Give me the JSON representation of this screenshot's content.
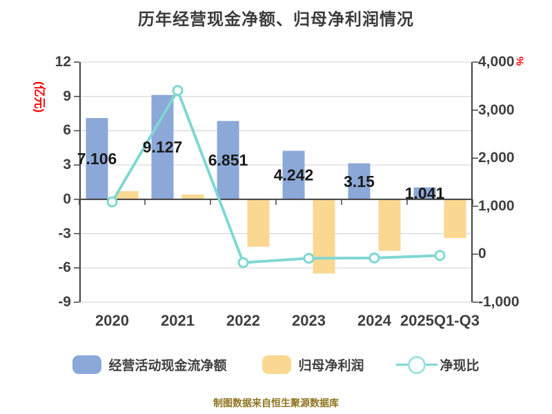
{
  "chart_data": {
    "type": "combo-bar-line",
    "title": "历年经营现金净额、归母净利润情况",
    "categories": [
      "2020",
      "2021",
      "2022",
      "2023",
      "2024",
      "2025Q1-Q3"
    ],
    "series": [
      {
        "name": "经营活动现金流净额",
        "type": "bar",
        "axis": "left",
        "color": "#8ba8d8",
        "values": [
          7.106,
          9.127,
          6.851,
          4.242,
          3.15,
          1.041
        ],
        "labels": [
          "7.106",
          "9.127",
          "6.851",
          "4.242",
          "3.15",
          "1.041"
        ]
      },
      {
        "name": "归母净利润",
        "type": "bar",
        "axis": "left",
        "color": "#fad892",
        "values": [
          0.72,
          0.42,
          -4.15,
          -6.49,
          -4.51,
          -3.39
        ]
      },
      {
        "name": "净现比",
        "type": "line",
        "axis": "right",
        "color": "#7ed8d2",
        "values": [
          1090,
          3410,
          -175,
          -85,
          -78,
          -27
        ]
      }
    ],
    "left_axis": {
      "unit": "(亿元)",
      "max": 12,
      "min": -9,
      "ticks": [
        12,
        9,
        6,
        3,
        0,
        -3,
        -6,
        -9
      ]
    },
    "right_axis": {
      "unit": "%",
      "max": 4000,
      "min": -1000,
      "ticks": [
        "4,000",
        "3,000",
        "2,000",
        "1,000",
        "0",
        "-1,000"
      ],
      "tick_values": [
        4000,
        3000,
        2000,
        1000,
        0,
        -1000
      ]
    },
    "grid": true,
    "legend_position": "bottom",
    "footer": "制图数据来自恒生聚源数据库",
    "colors": {
      "axis": "#404040",
      "grid": "#d9d9d9",
      "bar_label": "#1a1a1a",
      "unit": "#ff0000",
      "footer": "#8e7420"
    }
  }
}
